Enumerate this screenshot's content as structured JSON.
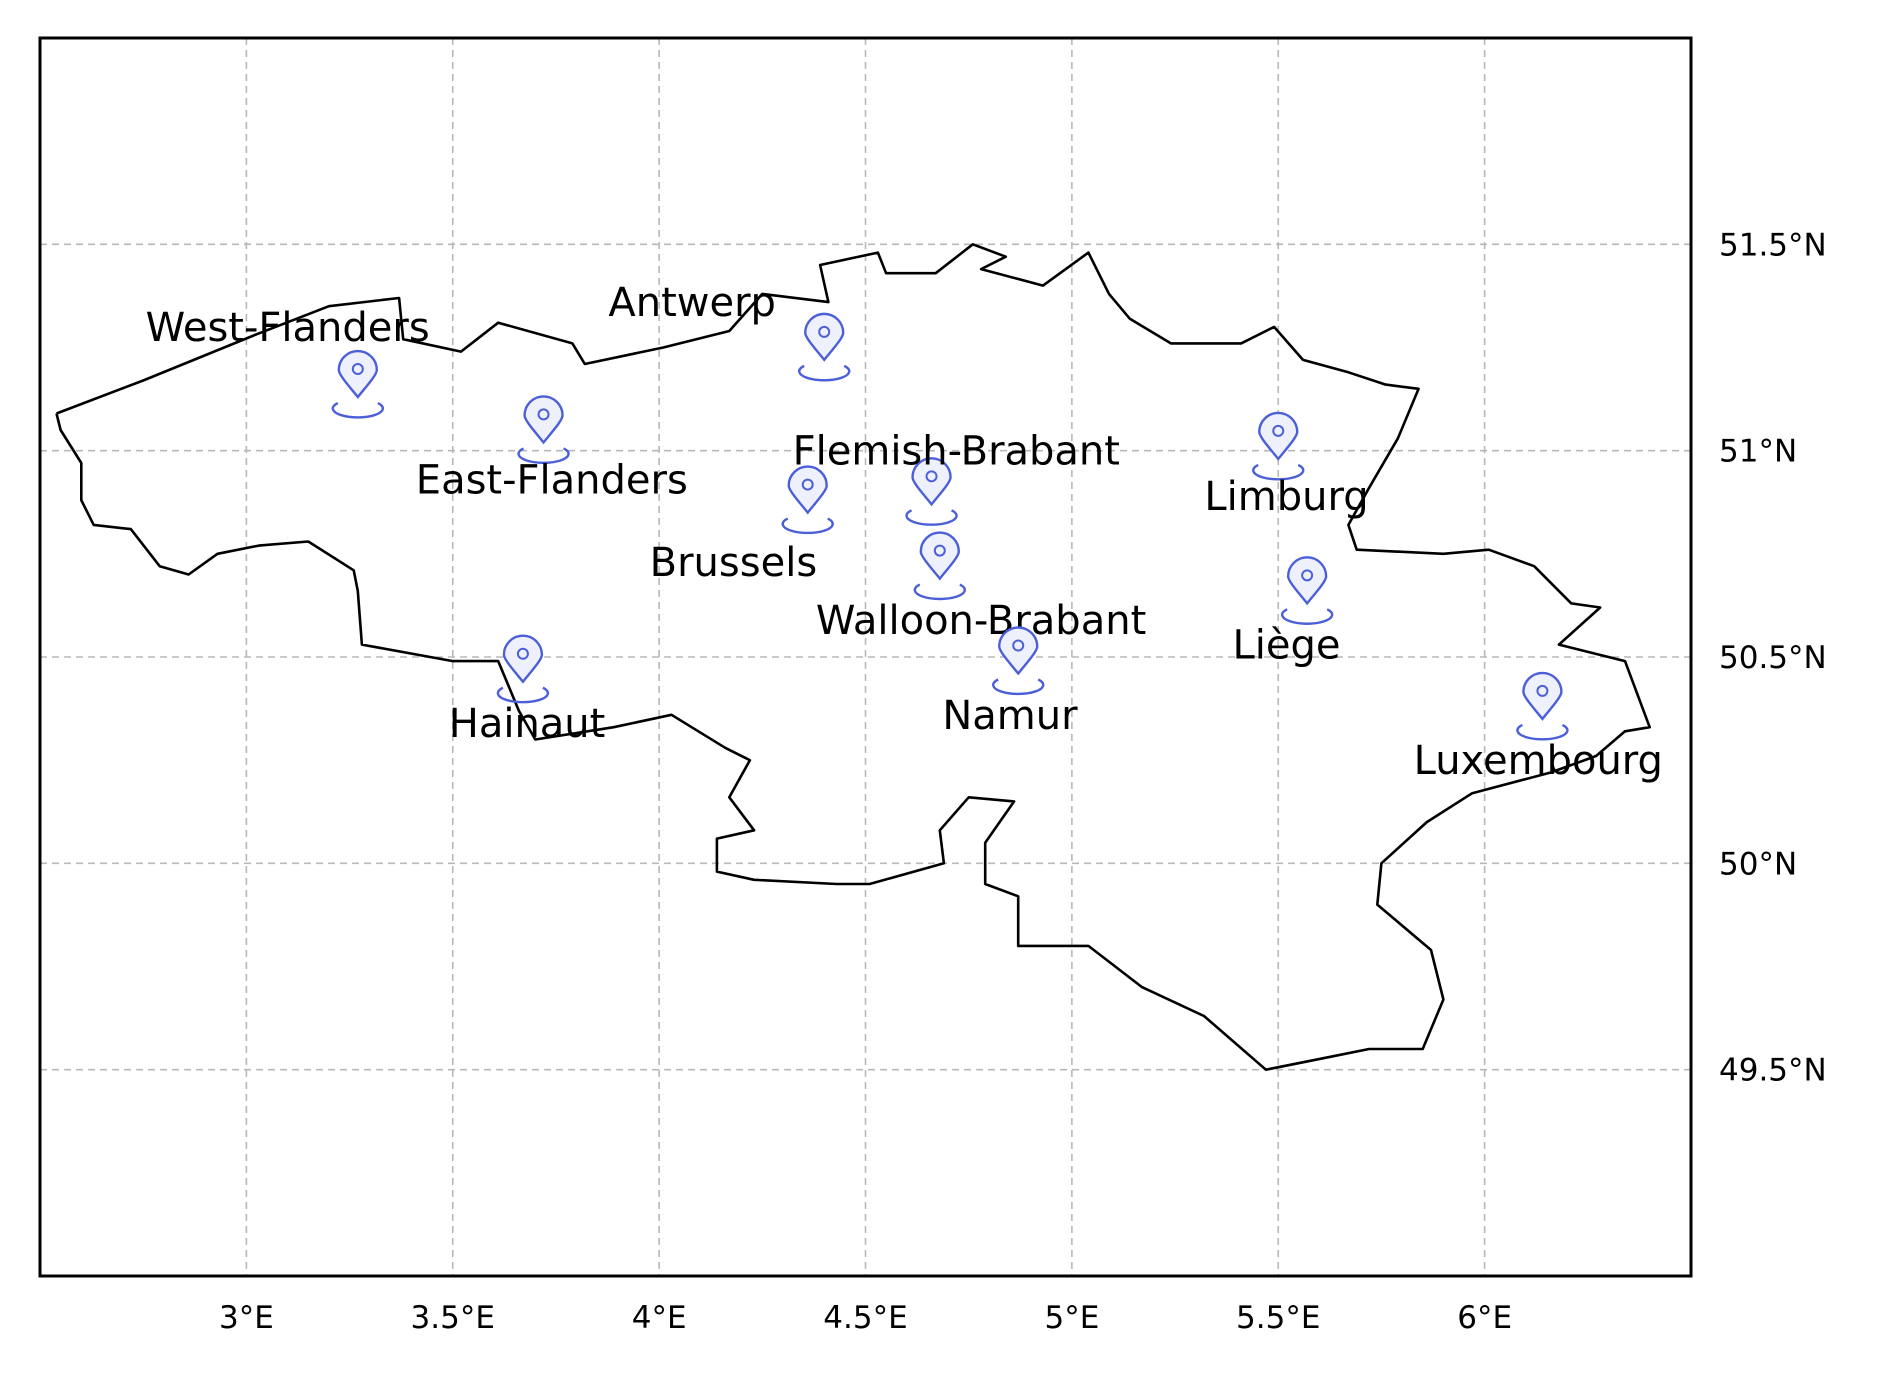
{
  "map": {
    "extent": {
      "lon": [
        2.5,
        6.5
      ],
      "lat": [
        49.0,
        52.0
      ]
    },
    "grid": true,
    "colors": {
      "pin": "#4b5fd8",
      "pin_fill": "#eef1fc",
      "border": "#000000",
      "grid": "#b8b8b8"
    },
    "x_ticks": [
      {
        "value": 3.0,
        "label": "3°E"
      },
      {
        "value": 3.5,
        "label": "3.5°E"
      },
      {
        "value": 4.0,
        "label": "4°E"
      },
      {
        "value": 4.5,
        "label": "4.5°E"
      },
      {
        "value": 5.0,
        "label": "5°E"
      },
      {
        "value": 5.5,
        "label": "5.5°E"
      },
      {
        "value": 6.0,
        "label": "6°E"
      }
    ],
    "y_ticks": [
      {
        "value": 49.5,
        "label": "49.5°N"
      },
      {
        "value": 50.0,
        "label": "50°N"
      },
      {
        "value": 50.5,
        "label": "50.5°N"
      },
      {
        "value": 51.0,
        "label": "51°N"
      },
      {
        "value": 51.5,
        "label": "51.5°N"
      }
    ],
    "markers": [
      {
        "name": "West-Flanders",
        "icon": "map-pin-icon",
        "lon": 3.27,
        "lat": 51.13,
        "label_lon": 3.1,
        "label_lat": 51.3
      },
      {
        "name": "Antwerp",
        "icon": "map-pin-icon",
        "lon": 4.4,
        "lat": 51.22,
        "label_lon": 4.08,
        "label_lat": 51.36
      },
      {
        "name": "East-Flanders",
        "icon": "map-pin-icon",
        "lon": 3.72,
        "lat": 51.02,
        "label_lon": 3.74,
        "label_lat": 50.93
      },
      {
        "name": "Flemish-Brabant",
        "icon": "map-pin-icon",
        "lon": 4.66,
        "lat": 50.87,
        "label_lon": 4.72,
        "label_lat": 51.0
      },
      {
        "name": "Brussels",
        "icon": "map-pin-icon",
        "lon": 4.36,
        "lat": 50.85,
        "label_lon": 4.18,
        "label_lat": 50.73
      },
      {
        "name": "Walloon-Brabant",
        "icon": "map-pin-icon",
        "lon": 4.68,
        "lat": 50.69,
        "label_lon": 4.78,
        "label_lat": 50.59
      },
      {
        "name": "Limburg",
        "icon": "map-pin-icon",
        "lon": 5.5,
        "lat": 50.98,
        "label_lon": 5.52,
        "label_lat": 50.89
      },
      {
        "name": "Liège",
        "icon": "map-pin-icon",
        "lon": 5.57,
        "lat": 50.63,
        "label_lon": 5.52,
        "label_lat": 50.53
      },
      {
        "name": "Hainaut",
        "icon": "map-pin-icon",
        "lon": 3.67,
        "lat": 50.44,
        "label_lon": 3.68,
        "label_lat": 50.34
      },
      {
        "name": "Namur",
        "icon": "map-pin-icon",
        "lon": 4.87,
        "lat": 50.46,
        "label_lon": 4.85,
        "label_lat": 50.36
      },
      {
        "name": "Luxembourg",
        "icon": "map-pin-icon",
        "lon": 6.14,
        "lat": 50.35,
        "label_lon": 6.13,
        "label_lat": 50.25
      }
    ],
    "border_lonlat": [
      [
        2.54,
        51.09
      ],
      [
        2.75,
        51.17
      ],
      [
        3.02,
        51.28
      ],
      [
        3.2,
        51.35
      ],
      [
        3.37,
        51.37
      ],
      [
        3.38,
        51.27
      ],
      [
        3.52,
        51.24
      ],
      [
        3.61,
        51.31
      ],
      [
        3.79,
        51.26
      ],
      [
        3.82,
        51.21
      ],
      [
        4.01,
        51.25
      ],
      [
        4.17,
        51.29
      ],
      [
        4.25,
        51.38
      ],
      [
        4.41,
        51.36
      ],
      [
        4.39,
        51.45
      ],
      [
        4.53,
        51.48
      ],
      [
        4.55,
        51.43
      ],
      [
        4.67,
        51.43
      ],
      [
        4.76,
        51.5
      ],
      [
        4.84,
        51.47
      ],
      [
        4.78,
        51.44
      ],
      [
        4.93,
        51.4
      ],
      [
        5.04,
        51.48
      ],
      [
        5.09,
        51.38
      ],
      [
        5.14,
        51.32
      ],
      [
        5.24,
        51.26
      ],
      [
        5.41,
        51.26
      ],
      [
        5.49,
        51.3
      ],
      [
        5.56,
        51.22
      ],
      [
        5.67,
        51.19
      ],
      [
        5.76,
        51.16
      ],
      [
        5.84,
        51.15
      ],
      [
        5.79,
        51.03
      ],
      [
        5.72,
        50.91
      ],
      [
        5.67,
        50.82
      ],
      [
        5.69,
        50.76
      ],
      [
        5.9,
        50.75
      ],
      [
        6.01,
        50.76
      ],
      [
        6.12,
        50.72
      ],
      [
        6.21,
        50.63
      ],
      [
        6.28,
        50.62
      ],
      [
        6.18,
        50.53
      ],
      [
        6.34,
        50.49
      ],
      [
        6.4,
        50.33
      ],
      [
        6.34,
        50.32
      ],
      [
        6.27,
        50.26
      ],
      [
        6.16,
        50.22
      ],
      [
        5.97,
        50.17
      ],
      [
        5.86,
        50.1
      ],
      [
        5.75,
        50.0
      ],
      [
        5.74,
        49.9
      ],
      [
        5.87,
        49.79
      ],
      [
        5.9,
        49.67
      ],
      [
        5.85,
        49.55
      ],
      [
        5.72,
        49.55
      ],
      [
        5.62,
        49.53
      ],
      [
        5.47,
        49.5
      ],
      [
        5.32,
        49.63
      ],
      [
        5.17,
        49.7
      ],
      [
        5.04,
        49.8
      ],
      [
        4.87,
        49.8
      ],
      [
        4.87,
        49.92
      ],
      [
        4.79,
        49.95
      ],
      [
        4.79,
        50.05
      ],
      [
        4.86,
        50.15
      ],
      [
        4.75,
        50.16
      ],
      [
        4.68,
        50.08
      ],
      [
        4.69,
        50.0
      ],
      [
        4.51,
        49.95
      ],
      [
        4.43,
        49.95
      ],
      [
        4.23,
        49.96
      ],
      [
        4.14,
        49.98
      ],
      [
        4.14,
        50.06
      ],
      [
        4.23,
        50.08
      ],
      [
        4.17,
        50.16
      ],
      [
        4.22,
        50.25
      ],
      [
        4.16,
        50.28
      ],
      [
        4.03,
        50.36
      ],
      [
        3.89,
        50.33
      ],
      [
        3.7,
        50.3
      ],
      [
        3.66,
        50.37
      ],
      [
        3.61,
        50.49
      ],
      [
        3.5,
        50.49
      ],
      [
        3.28,
        50.53
      ],
      [
        3.27,
        50.66
      ],
      [
        3.26,
        50.71
      ],
      [
        3.15,
        50.78
      ],
      [
        3.03,
        50.77
      ],
      [
        2.93,
        50.75
      ],
      [
        2.86,
        50.7
      ],
      [
        2.79,
        50.72
      ],
      [
        2.72,
        50.81
      ],
      [
        2.63,
        50.82
      ],
      [
        2.6,
        50.88
      ],
      [
        2.6,
        50.97
      ],
      [
        2.55,
        51.05
      ],
      [
        2.54,
        51.09
      ]
    ]
  }
}
